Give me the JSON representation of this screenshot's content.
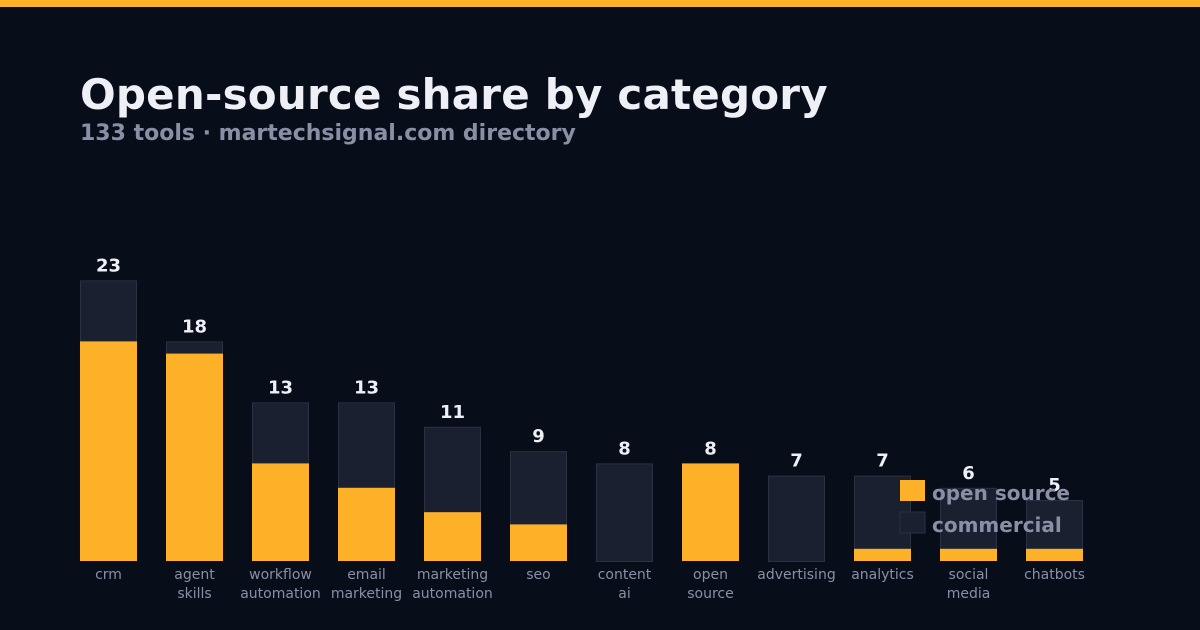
{
  "header": {
    "title": "Open-source share by category",
    "subtitle": "133 tools · martechsignal.com directory"
  },
  "colors": {
    "accent": "#fdb128",
    "background": "#080d1a",
    "commercial": "#1a2030",
    "commercial_border": "#2a3142",
    "text": "#eef0f6",
    "muted_text": "#8a8fa6"
  },
  "chart_data": {
    "type": "bar",
    "stacked": true,
    "categories": [
      "crm",
      "agent skills",
      "workflow automation",
      "email marketing",
      "marketing automation",
      "seo",
      "content ai",
      "open source",
      "advertising",
      "analytics",
      "social media",
      "chatbots"
    ],
    "category_lines": [
      [
        "crm"
      ],
      [
        "agent",
        "skills"
      ],
      [
        "workflow",
        "automation"
      ],
      [
        "email",
        "marketing"
      ],
      [
        "marketing",
        "automation"
      ],
      [
        "seo"
      ],
      [
        "content",
        "ai"
      ],
      [
        "open",
        "source"
      ],
      [
        "advertising"
      ],
      [
        "analytics"
      ],
      [
        "social",
        "media"
      ],
      [
        "chatbots"
      ]
    ],
    "totals": [
      23,
      18,
      13,
      13,
      11,
      9,
      8,
      8,
      7,
      7,
      6,
      5
    ],
    "series": [
      {
        "name": "open source",
        "values": [
          18,
          17,
          8,
          6,
          4,
          3,
          0,
          8,
          0,
          1,
          1,
          1
        ]
      },
      {
        "name": "commercial",
        "values": [
          5,
          1,
          5,
          7,
          7,
          6,
          8,
          0,
          7,
          6,
          5,
          4
        ]
      }
    ],
    "ylim": [
      0,
      23
    ],
    "grid": false,
    "legend": "bottom-right"
  }
}
